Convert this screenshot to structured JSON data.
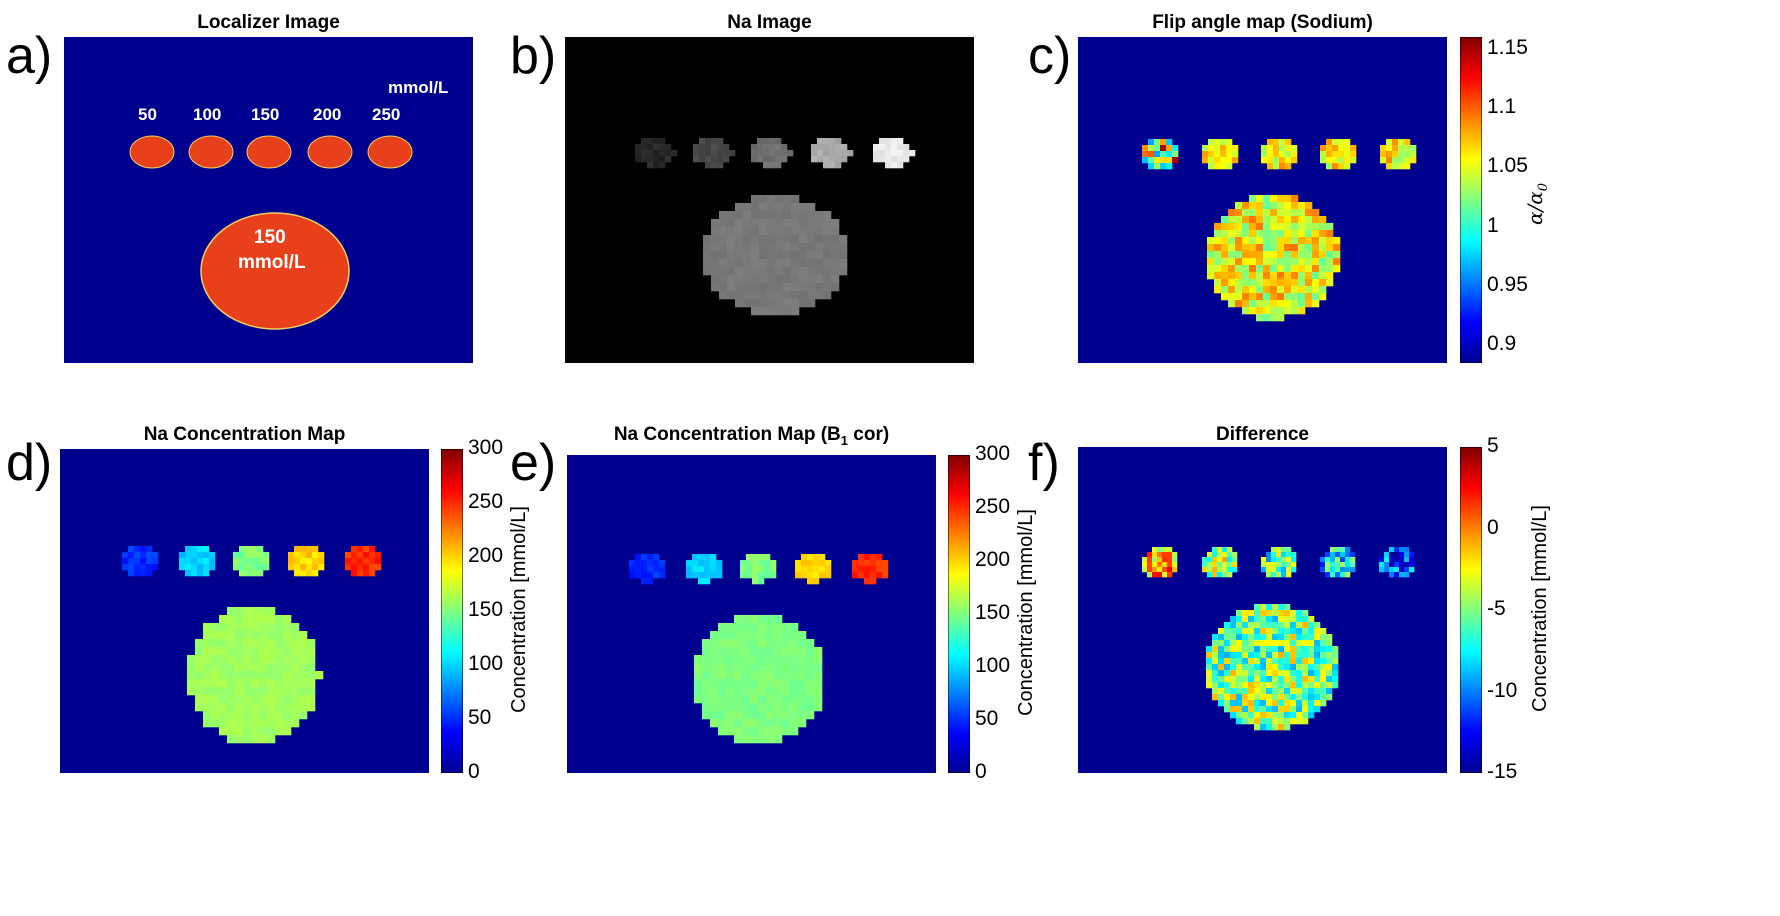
{
  "panels": {
    "a": {
      "letter": "a)",
      "title": "Localizer Image",
      "unit_label": "mmol/L",
      "vial_labels": [
        "50",
        "100",
        "150",
        "200",
        "250"
      ],
      "phantom_label_value": "150",
      "phantom_label_unit": "mmol/L"
    },
    "b": {
      "letter": "b)",
      "title": "Na Image"
    },
    "c": {
      "letter": "c)",
      "title": "Flip angle map (Sodium)",
      "colorbar_label": "α/α",
      "colorbar_label_sub": "0",
      "ticks": [
        "1.15",
        "1.1",
        "1.05",
        "1",
        "0.95",
        "0.9"
      ],
      "tick_values": [
        1.15,
        1.1,
        1.05,
        1.0,
        0.95,
        0.9
      ],
      "range": [
        0.885,
        1.16
      ]
    },
    "d": {
      "letter": "d)",
      "title": "Na Concentration Map",
      "colorbar_label": "Concentration [mmol/L]",
      "ticks": [
        "300",
        "250",
        "200",
        "150",
        "100",
        "50",
        "0"
      ],
      "tick_values": [
        300,
        250,
        200,
        150,
        100,
        50,
        0
      ],
      "range": [
        0,
        300
      ]
    },
    "e": {
      "letter": "e)",
      "title_main": "Na Concentration Map (B",
      "title_sub": "1",
      "title_end": " cor)",
      "colorbar_label": "Concentration [mmol/L]",
      "ticks": [
        "300",
        "250",
        "200",
        "150",
        "100",
        "50",
        "0"
      ],
      "tick_values": [
        300,
        250,
        200,
        150,
        100,
        50,
        0
      ],
      "range": [
        0,
        300
      ]
    },
    "f": {
      "letter": "f)",
      "title": "Difference",
      "colorbar_label": "Concentration [mmol/L]",
      "ticks": [
        "5",
        "0",
        "-5",
        "-10",
        "-15"
      ],
      "tick_values": [
        5,
        0,
        -5,
        -10,
        -15
      ],
      "range": [
        -15,
        5
      ]
    }
  },
  "colors": {
    "background_blue": "#00008f",
    "localizer_red": "#e8401a",
    "black": "#000000"
  }
}
